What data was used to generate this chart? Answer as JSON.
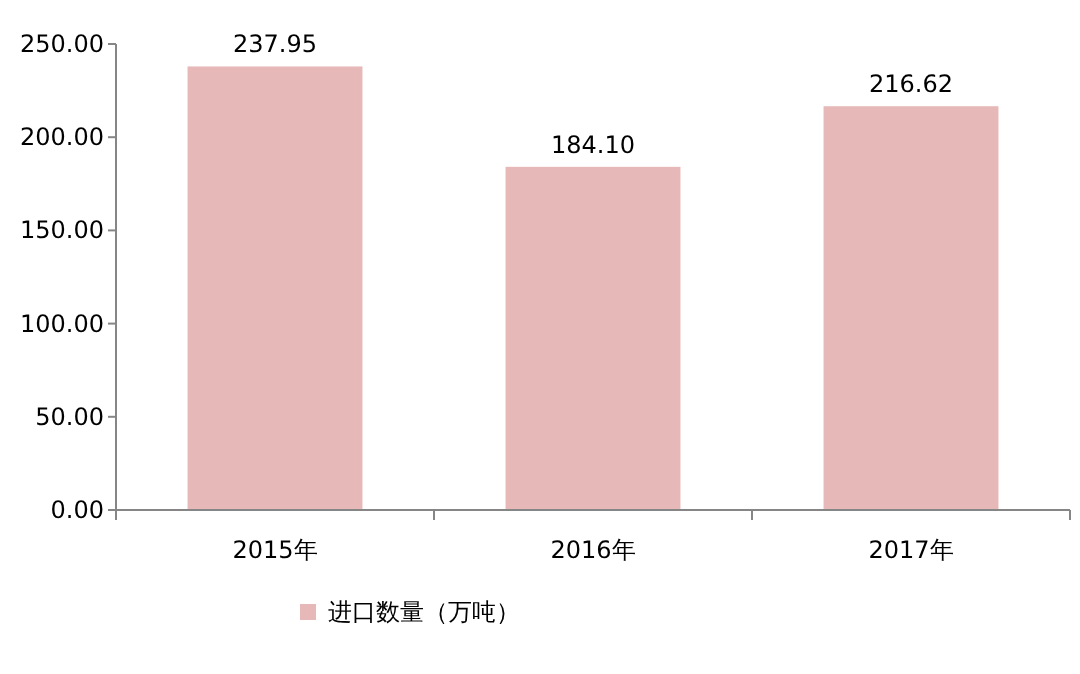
{
  "chart_data": {
    "type": "bar",
    "categories": [
      "2015年",
      "2016年",
      "2017年"
    ],
    "series": [
      {
        "name": "进口数量（万吨）",
        "color": "#e6b8b7",
        "values": [
          237.95,
          184.1,
          216.62
        ],
        "value_labels": [
          "237.95",
          "184.10",
          "216.62"
        ]
      }
    ],
    "ylim": [
      0,
      250
    ],
    "yticks": [
      {
        "value": 0,
        "label": "0.00"
      },
      {
        "value": 50,
        "label": "50.00"
      },
      {
        "value": 100,
        "label": "100.00"
      },
      {
        "value": 150,
        "label": "150.00"
      },
      {
        "value": 200,
        "label": "200.00"
      },
      {
        "value": 250,
        "label": "250.00"
      }
    ],
    "legend": "bottom",
    "grid": false
  }
}
